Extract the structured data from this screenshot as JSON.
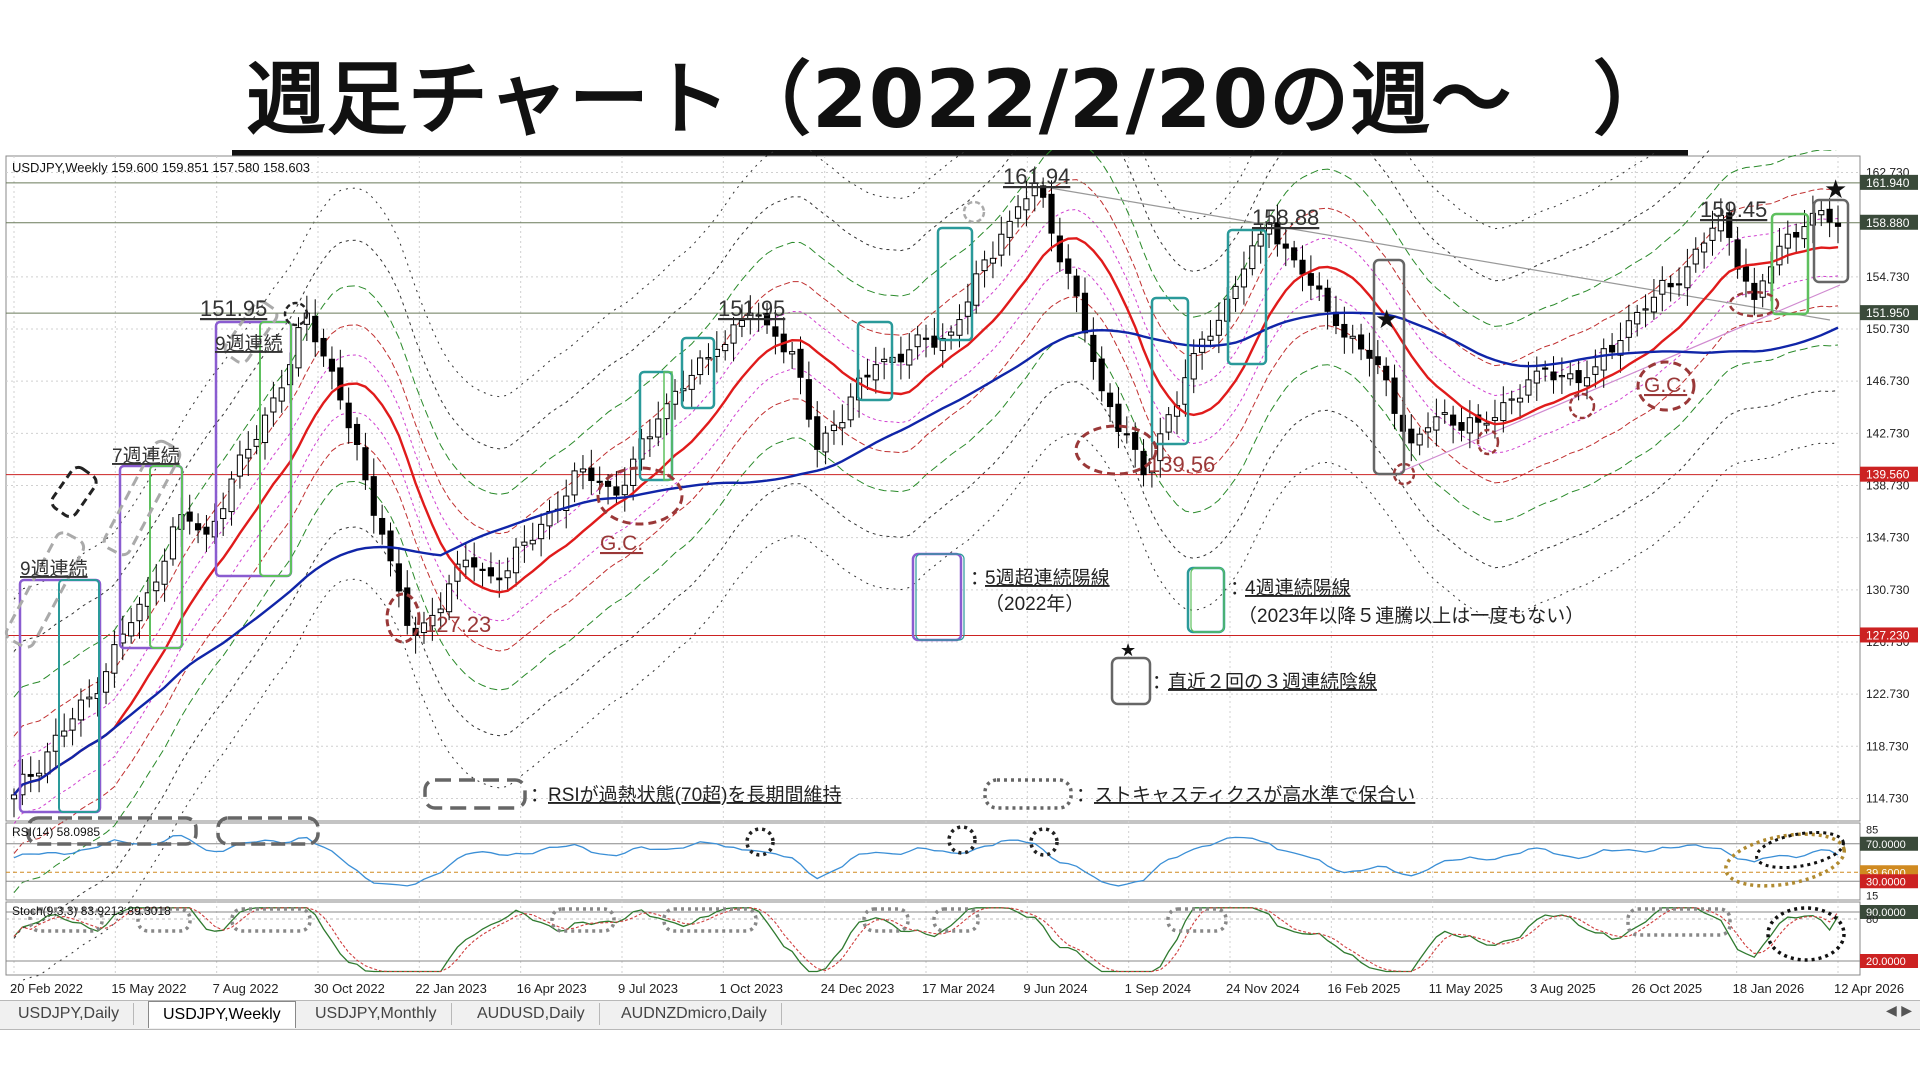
{
  "page": {
    "title": "週足チャート（2022/2/20の週～　）"
  },
  "header": {
    "main_info": "USDJPY,Weekly  159.600 159.851 157.580 158.603",
    "rsi_info": "RSI(14) 58.0985",
    "stoch_info": "Stoch(9,3,3) 83.9213 89.3018"
  },
  "colors": {
    "bull_candle": "#ffffff",
    "bear_candle": "#000000",
    "ma_short": "#e01b1b",
    "ma_long": "#1025a8",
    "band_1": "#d040d0",
    "band_2": "#c03030",
    "band_3": "#2a8a2a",
    "band_4": "#333333",
    "rsi_line": "#3b8fd6",
    "stoch_main": "#2f7a2f",
    "stoch_signal": "#d04040",
    "box_purple": "#8a5cd0",
    "box_teal": "#2a9a9a",
    "box_green": "#5ec05e",
    "box_gray": "#666666",
    "annotation_red": "#9a3838"
  },
  "price_axis": {
    "ticks": [
      "162.730",
      "154.730",
      "150.730",
      "146.730",
      "142.730",
      "138.730",
      "134.730",
      "130.730",
      "126.730",
      "122.730",
      "118.730",
      "114.730"
    ],
    "highlights": [
      {
        "label": "161.940",
        "bg": "#3a4a3a"
      },
      {
        "label": "158.880",
        "bg": "#3a4a3a"
      },
      {
        "label": "151.950",
        "bg": "#3a4a3a"
      },
      {
        "label": "139.560",
        "bg": "#cc2222"
      },
      {
        "label": "127.230",
        "bg": "#cc2222"
      }
    ],
    "rsi_ticks": [
      "85",
      "70.0000",
      "39.6000",
      "30.0000",
      "15"
    ],
    "rsi_highlight_70": "70.0000",
    "rsi_highlight_39": "39.6000",
    "rsi_highlight_30": "30.0000",
    "stoch_ticks": [
      "90.0000",
      "80",
      "20.0000"
    ]
  },
  "x_axis": {
    "ticks": [
      "20 Feb 2022",
      "15 May 2022",
      "7 Aug 2022",
      "30 Oct 2022",
      "22 Jan 2023",
      "16 Apr 2023",
      "9 Jul 2023",
      "1 Oct 2023",
      "24 Dec 2023",
      "17 Mar 2024",
      "9 Jun 2024",
      "1 Sep 2024",
      "24 Nov 2024",
      "16 Feb 2025",
      "11 May 2025",
      "3 Aug 2025",
      "26 Oct 2025",
      "18 Jan 2026",
      "12 Apr 2026"
    ]
  },
  "annotations": {
    "streak_9_a": "9週連続",
    "streak_7": "7週連続",
    "streak_9_b": "9週連続",
    "high_1": "151.95",
    "high_2": "151.95",
    "high_3": "161.94",
    "high_4": "158.88",
    "high_5": "159.45",
    "low_1": "127.23",
    "low_2": "139.56",
    "gc_1": "G.C.",
    "gc_2": "G.C."
  },
  "legend": {
    "purple_box": "5週超連続陽線",
    "purple_box_sub": "（2022年）",
    "teal_box": "4週連続陽線",
    "teal_box_sub": "（2023年以降５連騰以上は一度もない）",
    "gray_box": "直近２回の３週連続陰線",
    "dashed_rsi": "RSIが過熱状態(70超)を長期間維持",
    "dotted_stoch": "ストキャスティクスが高水準で保合い",
    "colon": "："
  },
  "tabs": [
    {
      "label": "USDJPY,Daily",
      "active": false
    },
    {
      "label": "USDJPY,Weekly",
      "active": true
    },
    {
      "label": "USDJPY,Monthly",
      "active": false
    },
    {
      "label": "AUDUSD,Daily",
      "active": false
    },
    {
      "label": "AUDNZDmicro,Daily",
      "active": false
    }
  ],
  "chart_data": {
    "type": "candlestick",
    "symbol": "USDJPY",
    "timeframe": "Weekly",
    "ylim": [
      113.0,
      164.0
    ],
    "x_range": [
      "20 Feb 2022",
      "26 Apr 2026"
    ],
    "weeks": 219,
    "ohlc_keypoints": [
      {
        "week": 0,
        "close": 115.0
      },
      {
        "week": 9,
        "close": 122.5
      },
      {
        "week": 16,
        "close": 130.5
      },
      {
        "week": 20,
        "close": 136.5
      },
      {
        "week": 23,
        "close": 135.0
      },
      {
        "week": 33,
        "close": 148.0
      },
      {
        "week": 35,
        "close": 151.95
      },
      {
        "week": 38,
        "close": 147.5
      },
      {
        "week": 44,
        "close": 135.0
      },
      {
        "week": 47,
        "close": 128.0
      },
      {
        "week": 48,
        "close": 127.23
      },
      {
        "week": 54,
        "close": 133.0
      },
      {
        "week": 58,
        "close": 131.5
      },
      {
        "week": 68,
        "close": 140.0
      },
      {
        "week": 72,
        "close": 138.0
      },
      {
        "week": 78,
        "close": 145.0
      },
      {
        "week": 88,
        "close": 151.95
      },
      {
        "week": 93,
        "close": 149.0
      },
      {
        "week": 96,
        "close": 141.5
      },
      {
        "week": 103,
        "close": 148.0
      },
      {
        "week": 112,
        "close": 150.5
      },
      {
        "week": 118,
        "close": 158.0
      },
      {
        "week": 122,
        "close": 161.94
      },
      {
        "week": 126,
        "close": 155.0
      },
      {
        "week": 130,
        "close": 146.0
      },
      {
        "week": 134,
        "close": 141.5
      },
      {
        "week": 135,
        "close": 139.56
      },
      {
        "week": 140,
        "close": 147.0
      },
      {
        "week": 146,
        "close": 154.0
      },
      {
        "week": 149,
        "close": 158.0
      },
      {
        "week": 150,
        "close": 158.88
      },
      {
        "week": 158,
        "close": 151.0
      },
      {
        "week": 163,
        "close": 148.0
      },
      {
        "week": 167,
        "close": 142.0
      },
      {
        "week": 170,
        "close": 144.0
      },
      {
        "week": 176,
        "close": 143.5
      },
      {
        "week": 182,
        "close": 147.5
      },
      {
        "week": 188,
        "close": 147.0
      },
      {
        "week": 194,
        "close": 152.0
      },
      {
        "week": 200,
        "close": 155.5
      },
      {
        "week": 204,
        "close": 159.45
      },
      {
        "week": 208,
        "close": 153.0
      },
      {
        "week": 212,
        "close": 158.0
      },
      {
        "week": 215,
        "close": 159.6
      },
      {
        "week": 218,
        "close": 158.603
      }
    ],
    "last_bar": {
      "open": 159.6,
      "high": 159.851,
      "low": 157.58,
      "close": 158.603
    },
    "horizontal_levels": [
      161.94,
      158.88,
      151.95,
      139.56,
      127.23
    ],
    "rsi": {
      "period": 14,
      "last": 58.0985,
      "levels": [
        70,
        39.6,
        30
      ]
    },
    "stochastic": {
      "params": [
        9,
        3,
        3
      ],
      "main": 83.9213,
      "signal": 89.3018,
      "levels": [
        90,
        20
      ]
    }
  }
}
